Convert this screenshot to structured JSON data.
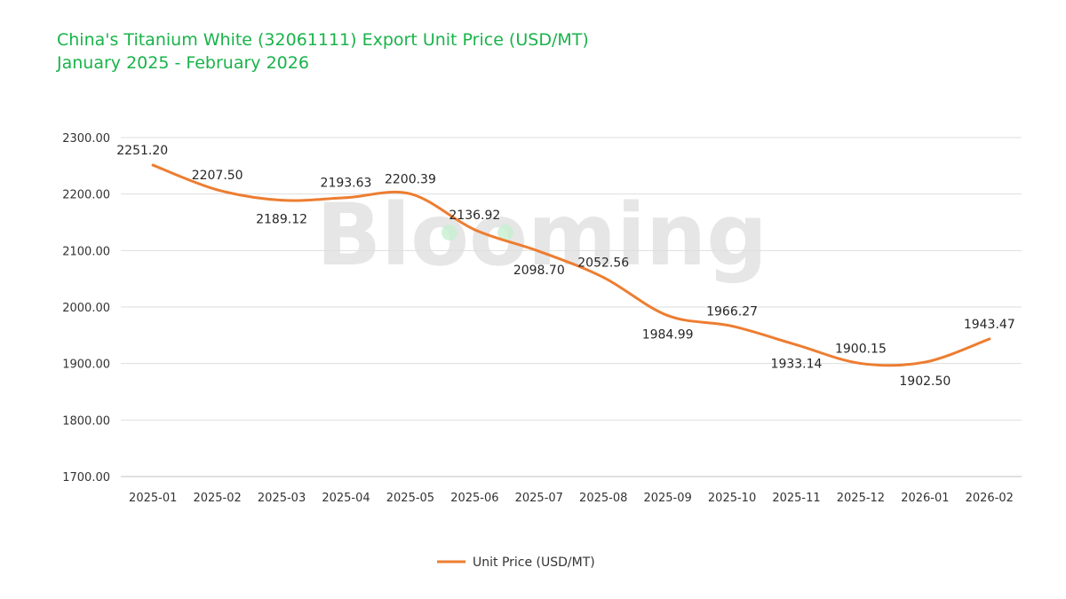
{
  "chart_data": {
    "type": "line",
    "title": "China's Titanium White (32061111) Export Unit Price (USD/MT)",
    "subtitle": "January 2025 - February 2026",
    "watermark": "Blooming",
    "categories": [
      "2025-01",
      "2025-02",
      "2025-03",
      "2025-04",
      "2025-05",
      "2025-06",
      "2025-07",
      "2025-08",
      "2025-09",
      "2025-10",
      "2025-11",
      "2025-12",
      "2026-01",
      "2026-02"
    ],
    "series": [
      {
        "name": "Unit Price (USD/MT)",
        "color": "#ed7d31",
        "values": [
          2251.2,
          2207.5,
          2189.12,
          2193.63,
          2200.39,
          2136.92,
          2098.7,
          2052.56,
          1984.99,
          1966.27,
          1933.14,
          1900.15,
          1902.5,
          1943.47
        ],
        "labels": [
          "2251.20",
          "2207.50",
          "2189.12",
          "2193.63",
          "2200.39",
          "2136.92",
          "2098.70",
          "2052.56",
          "1984.99",
          "1966.27",
          "1933.14",
          "1900.15",
          "1902.50",
          "1943.47"
        ]
      }
    ],
    "yticks": [
      "2300.00",
      "2200.00",
      "2100.00",
      "2000.00",
      "1900.00",
      "1800.00",
      "1700.00"
    ],
    "ylim": [
      1700,
      2300
    ],
    "grid": true,
    "legend": "bottom-center",
    "smooth": true
  }
}
